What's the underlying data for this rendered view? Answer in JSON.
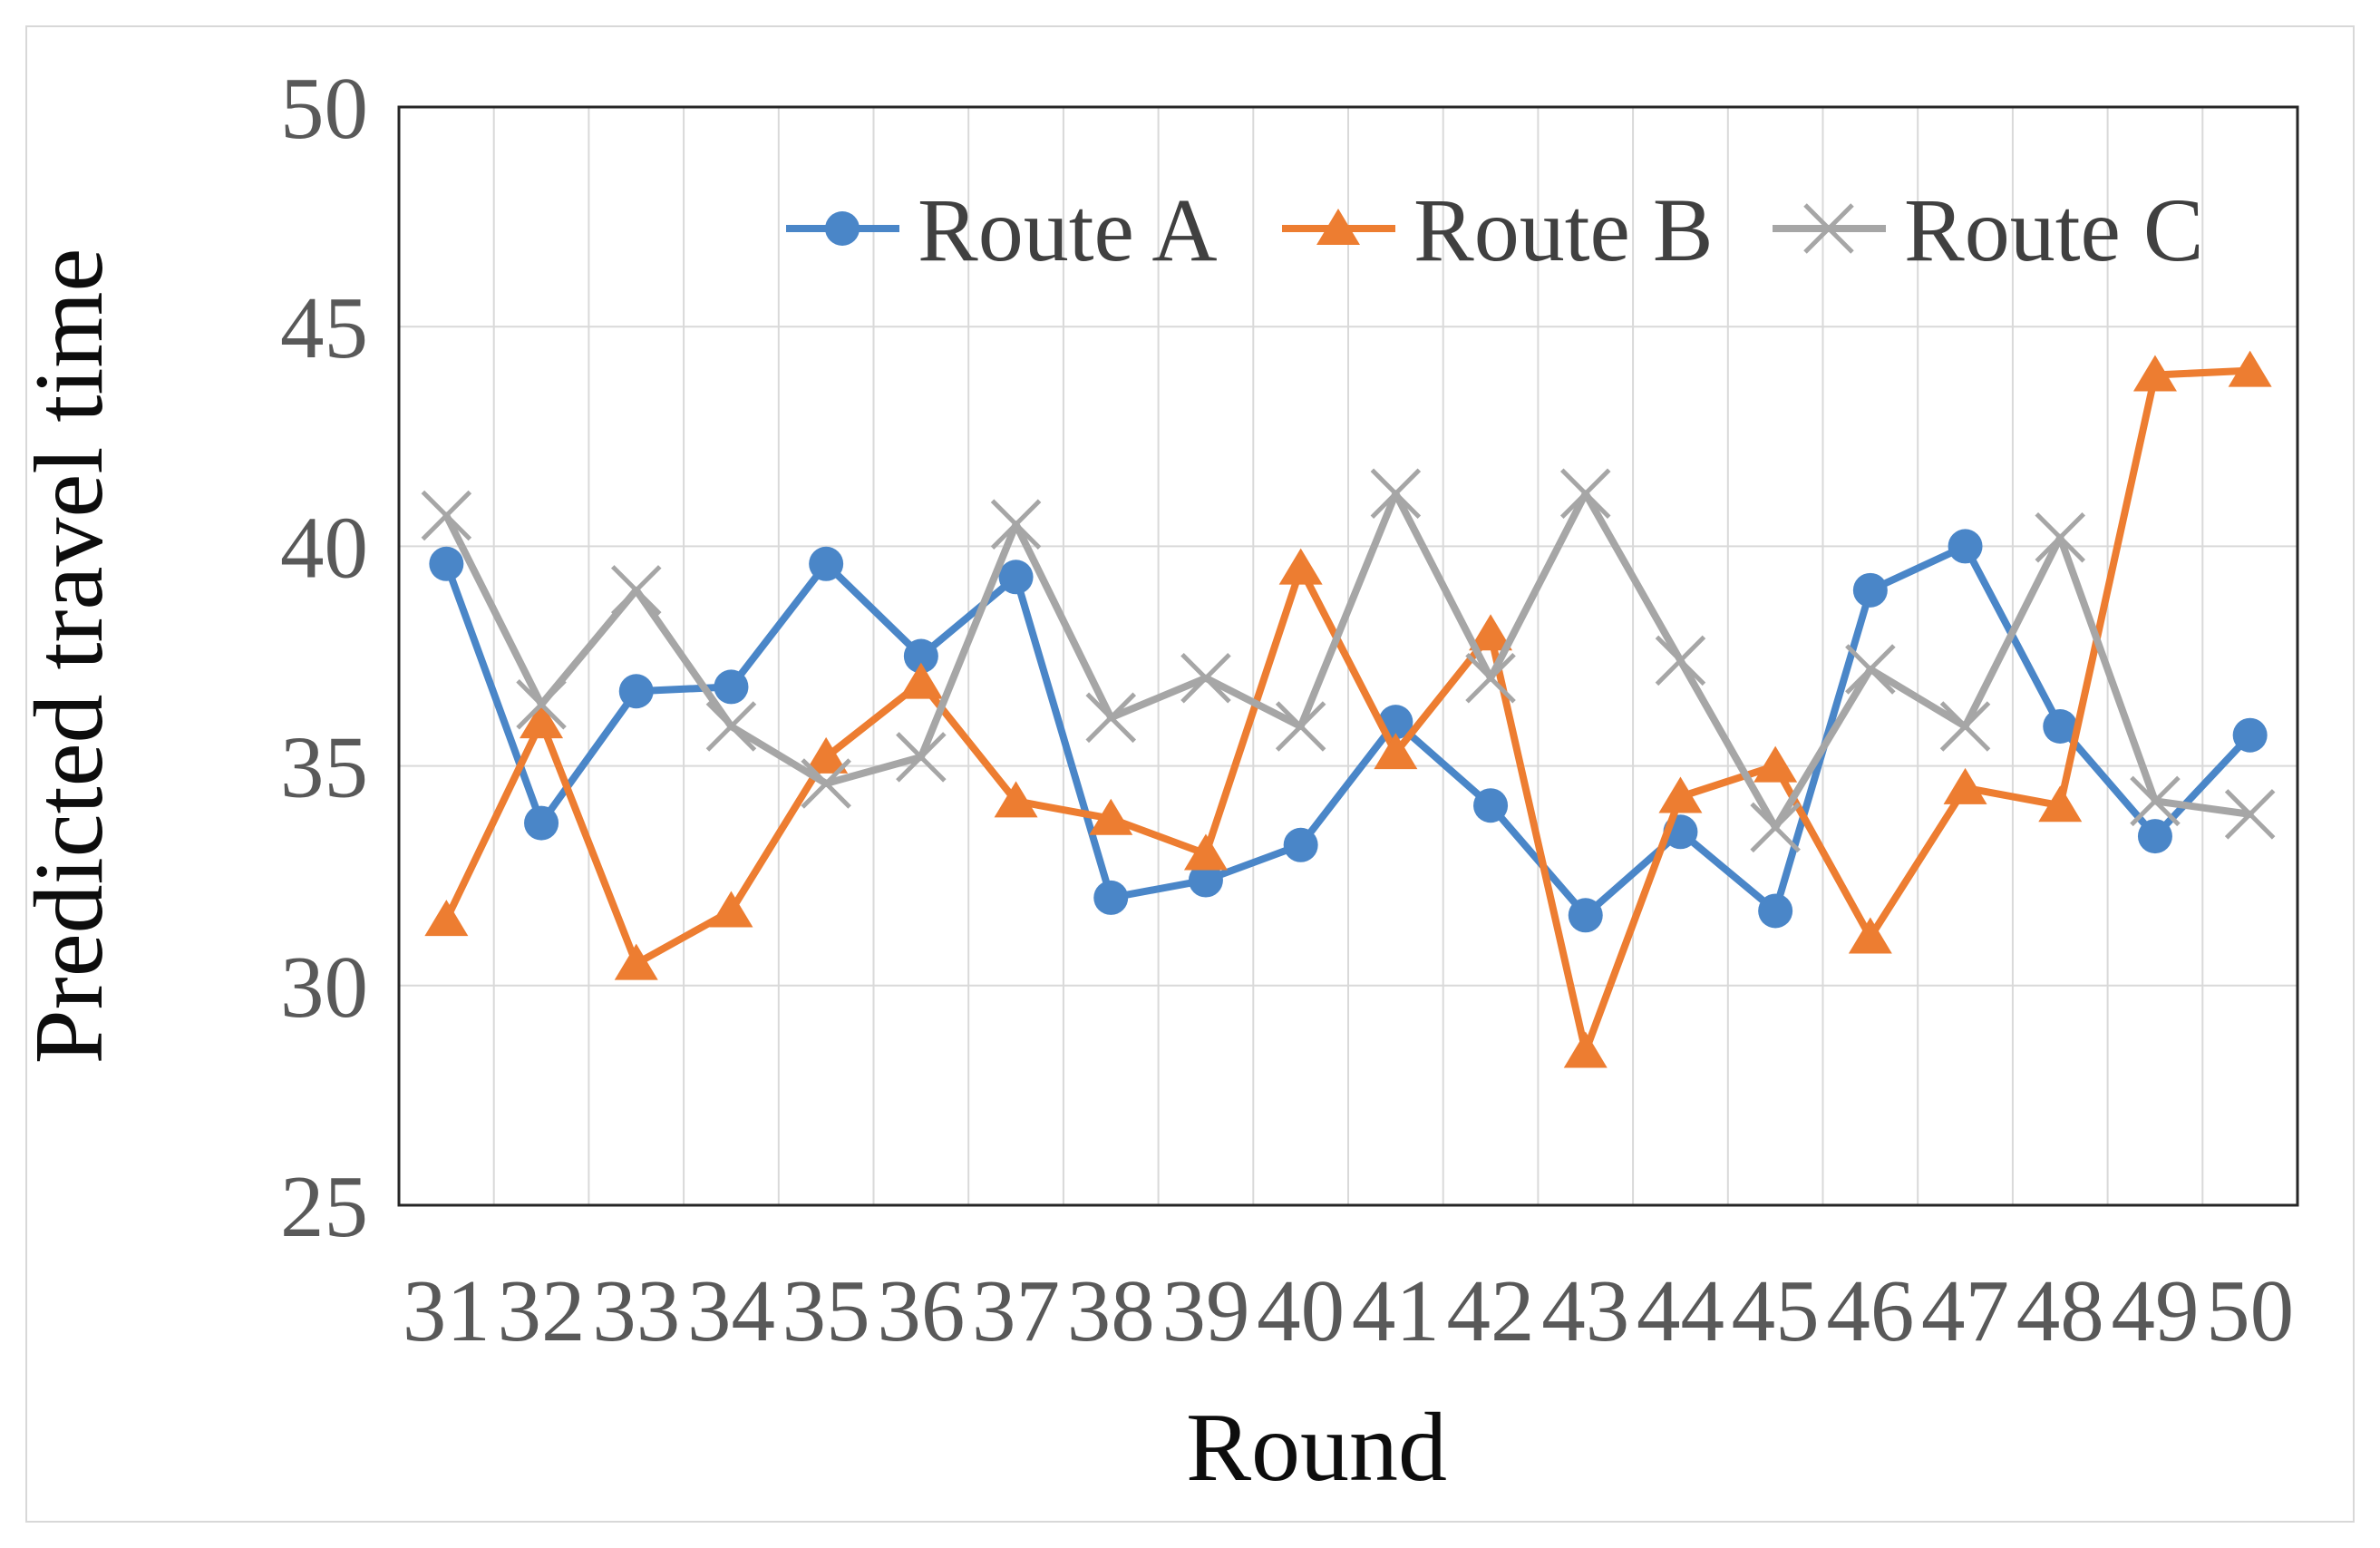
{
  "figure": {
    "background_color": "#ffffff",
    "frame_color": "#d8d8d8"
  },
  "chart_data": {
    "type": "line",
    "title": "",
    "xlabel": "Round",
    "ylabel": "Predicted travel time",
    "x": [
      31,
      32,
      33,
      34,
      35,
      36,
      37,
      38,
      39,
      40,
      41,
      42,
      43,
      44,
      45,
      46,
      47,
      48,
      49,
      50
    ],
    "ylim": [
      25,
      50
    ],
    "yticks": [
      25,
      30,
      35,
      40,
      45,
      50
    ],
    "grid": true,
    "legend_position": "top-center-inside",
    "series": [
      {
        "name": "Route A",
        "marker": "circle",
        "color": "#4A86C8",
        "values": [
          39.6,
          33.7,
          36.7,
          36.8,
          39.6,
          37.5,
          39.3,
          32.0,
          32.4,
          33.2,
          36.0,
          34.1,
          31.6,
          33.5,
          31.7,
          39.0,
          40.0,
          35.9,
          33.4,
          35.7
        ]
      },
      {
        "name": "Route B",
        "marker": "triangle",
        "color": "#ED7D31",
        "values": [
          31.5,
          36.0,
          30.5,
          31.7,
          35.2,
          36.9,
          34.2,
          33.8,
          33.0,
          39.5,
          35.3,
          38.0,
          28.5,
          34.3,
          35.0,
          31.1,
          34.5,
          34.1,
          43.9,
          44.0
        ]
      },
      {
        "name": "Route C",
        "marker": "x",
        "color": "#A6A6A6",
        "values": [
          40.7,
          36.4,
          39.0,
          35.9,
          34.6,
          35.2,
          40.5,
          36.1,
          37.0,
          35.9,
          41.2,
          37.0,
          41.2,
          37.4,
          33.6,
          37.2,
          35.9,
          40.2,
          34.2,
          33.9
        ]
      }
    ],
    "axis_style": {
      "gridline_color": "#d9d9d9",
      "plot_border_color": "#262626",
      "tick_label_color": "#595959",
      "axis_title_color": "#0d0d0d",
      "legend_text_color": "#404040"
    }
  }
}
